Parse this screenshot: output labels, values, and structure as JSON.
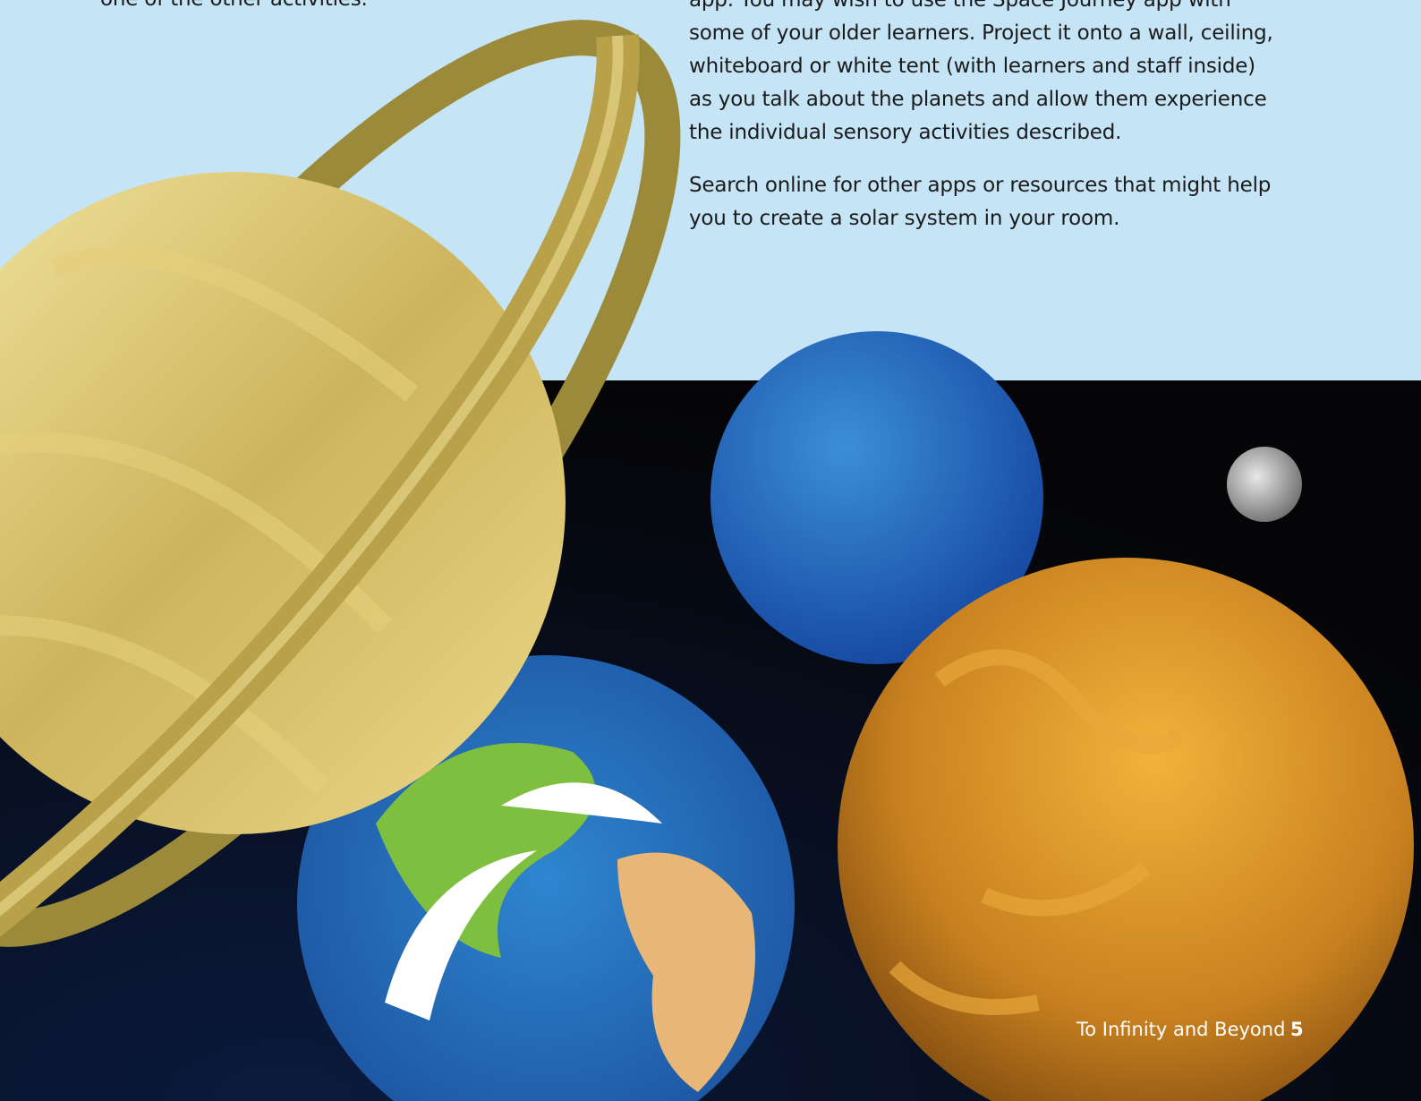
{
  "page": {
    "intro_fragment": "one of the other activities.",
    "paragraphs": [
      [
        "app. You may wish to use the Space Journey app with",
        "some of your older learners. Project it onto a wall, ceiling,",
        "whiteboard or white tent (with learners and staff inside)",
        "as you talk about the planets and allow them experience",
        "the individual sensory activities described."
      ],
      [
        "Search online for other apps or resources that might help",
        "you to create a solar system in your room."
      ]
    ],
    "footer": {
      "title": "To Infinity and Beyond",
      "page_number": "5"
    }
  }
}
